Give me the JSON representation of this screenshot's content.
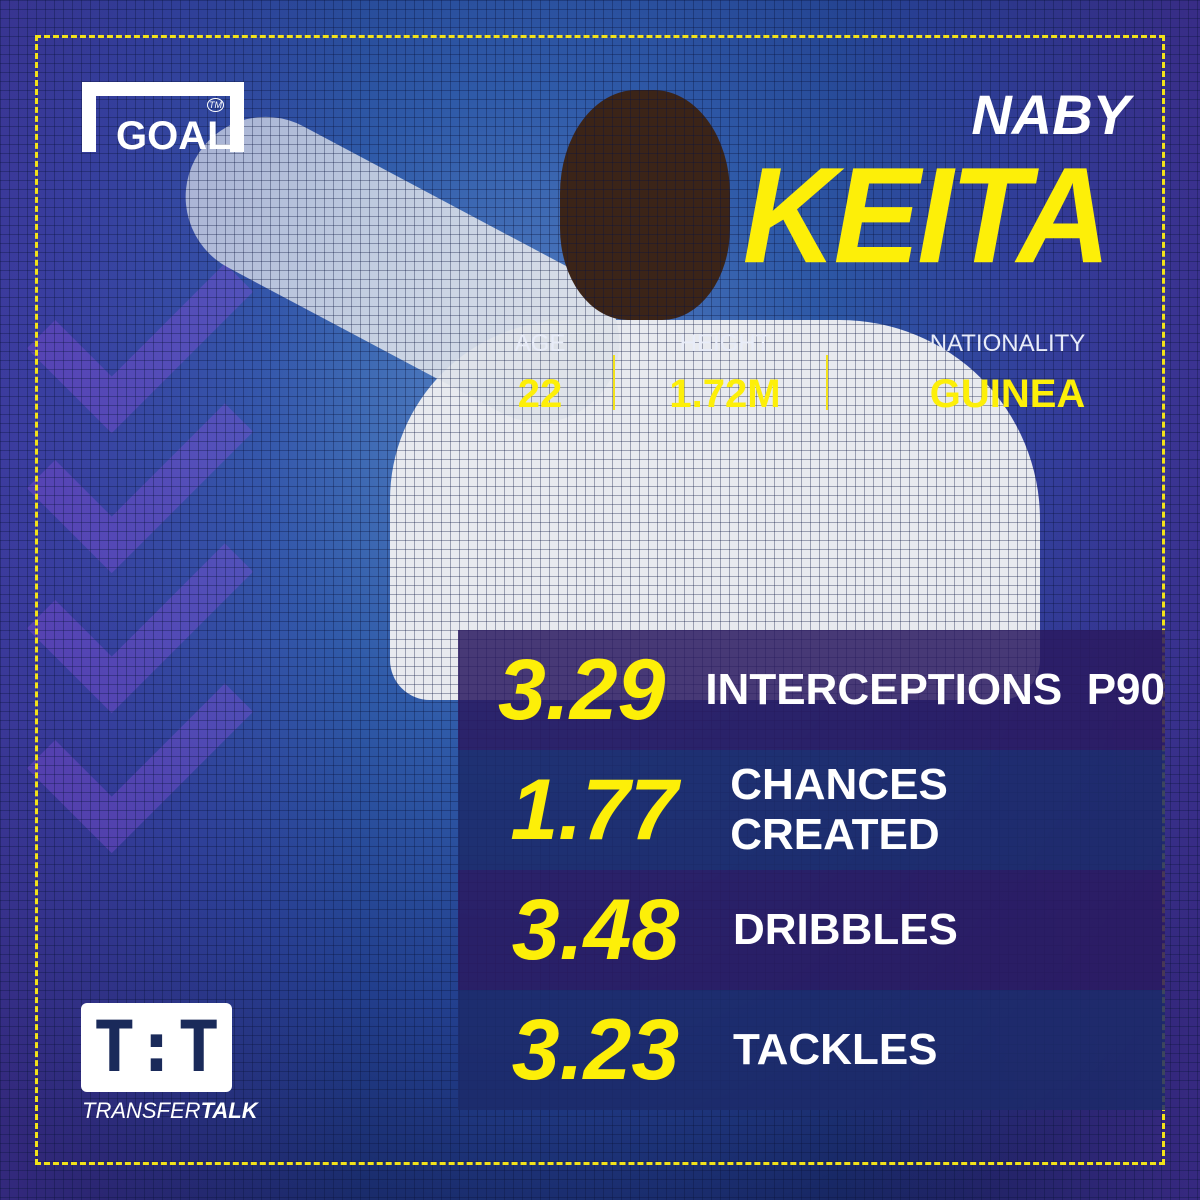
{
  "brand": {
    "logo": "GOAL",
    "tm": "TM",
    "partner_logo": "T:T",
    "partner_name_1": "TRANSFER",
    "partner_name_2": "TALK"
  },
  "player": {
    "first_name": "NABY",
    "last_name": "KEITA"
  },
  "info": [
    {
      "label": "AGE",
      "value": "22"
    },
    {
      "label": "HEIGHT",
      "value": "1.72M"
    },
    {
      "label": "NATIONALITY",
      "value": "GUINEA"
    }
  ],
  "stats": [
    {
      "value": "3.29",
      "label": "INTERCEPTIONS  P90"
    },
    {
      "value": "1.77",
      "label": "CHANCES CREATED"
    },
    {
      "value": "3.48",
      "label": "DRIBBLES"
    },
    {
      "value": "3.23",
      "label": "TACKLES"
    }
  ],
  "colors": {
    "accent": "#fdef08",
    "row_dark": "#2a1a60",
    "row_navy": "#1c2a6a"
  }
}
